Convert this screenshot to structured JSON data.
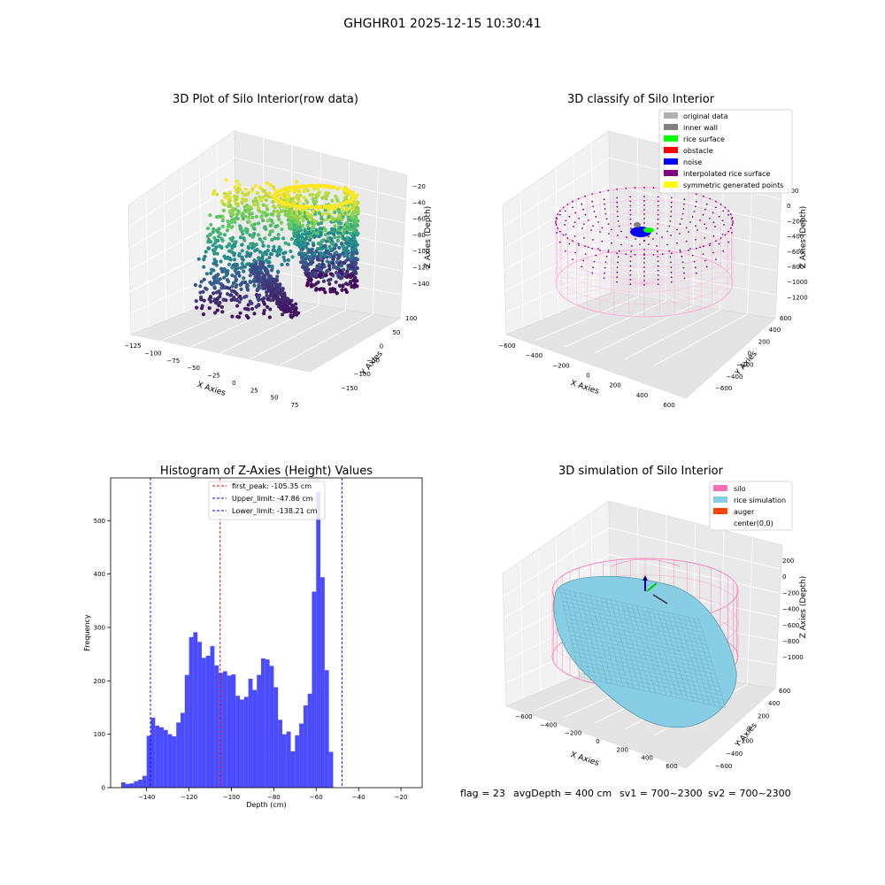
{
  "figure": {
    "suptitle": "GHGHR01 2025-12-15 10:30:41",
    "footer": {
      "flag": "flag = 23",
      "avg_depth": "avgDepth = 400 cm",
      "sv1": "sv1 = 700~2300",
      "sv2": "sv2 = 700~2300"
    }
  },
  "chart_data": [
    {
      "type": "scatter",
      "projection": "3d",
      "title": "3D Plot of Silo Interior(row data)",
      "xlabel": "X Axies",
      "ylabel": "Y Axies",
      "zlabel": "Z Axies (Depth)",
      "x_ticks": [
        "−125",
        "−100",
        "−75",
        "−50",
        "−25",
        "0",
        "25",
        "50",
        "75"
      ],
      "y_ticks": [
        "−150",
        "−100",
        "−50",
        "0",
        "50",
        "100"
      ],
      "z_ticks": [
        "−20",
        "−40",
        "−60",
        "−80",
        "−100",
        "−120",
        "−140"
      ],
      "xlim": [
        -135,
        80
      ],
      "ylim": [
        -170,
        120
      ],
      "zlim": [
        -150,
        -15
      ],
      "colormap": "viridis",
      "colors": {
        "low": "#440154",
        "mid": "#21918c",
        "high": "#fde725"
      }
    },
    {
      "type": "scatter",
      "projection": "3d",
      "title": "3D classify of Silo Interior",
      "xlabel": "X Axies",
      "ylabel": "Y Axies",
      "zlabel": "Z Axies (Depth)",
      "x_ticks": [
        "−600",
        "−400",
        "−200",
        "0",
        "200",
        "400",
        "600"
      ],
      "y_ticks": [
        "−600",
        "−400",
        "−200",
        "0",
        "200",
        "400",
        "600"
      ],
      "z_ticks": [
        "200",
        "0",
        "−200",
        "−400",
        "−600",
        "−800",
        "−1000",
        "−1200"
      ],
      "legend": {
        "placement": "top-right",
        "entries": [
          {
            "label": "original data",
            "color": "#b0b0b0"
          },
          {
            "label": "inner wall",
            "color": "#808080"
          },
          {
            "label": "rice surface",
            "color": "#00ff00"
          },
          {
            "label": "obstacle",
            "color": "#ff0000"
          },
          {
            "label": "noise",
            "color": "#0000ff"
          },
          {
            "label": "interpolated rice surface",
            "color": "#800080"
          },
          {
            "label": "symmetric generated points",
            "color": "#ffff00"
          }
        ]
      },
      "wall_color": "#ff9ecf"
    },
    {
      "type": "bar",
      "title": "Histogram of Z-Axies (Height) Values",
      "xlabel": "Depth (cm)",
      "ylabel": "Frequency",
      "xlim": [
        -157,
        -10
      ],
      "ylim": [
        0,
        580
      ],
      "x_ticks": [
        -140,
        -120,
        -100,
        -80,
        -60,
        -40,
        -20
      ],
      "y_ticks": [
        0,
        100,
        200,
        300,
        400,
        500
      ],
      "bin_start": -152,
      "bin_width": 2,
      "values": [
        10,
        7,
        8,
        12,
        15,
        22,
        97,
        131,
        116,
        113,
        108,
        100,
        96,
        122,
        140,
        211,
        282,
        291,
        273,
        243,
        247,
        265,
        229,
        215,
        218,
        210,
        212,
        172,
        165,
        170,
        204,
        183,
        211,
        242,
        240,
        228,
        188,
        127,
        100,
        105,
        68,
        98,
        120,
        154,
        176,
        367,
        554,
        394,
        220,
        67
      ],
      "bar_color": "#4b4bff",
      "lines": [
        {
          "label": "first_peak: -105.35 cm",
          "x": -105.35,
          "color": "#ff0000"
        },
        {
          "label": "Upper_limit: -47.86 cm",
          "x": -47.86,
          "color": "#0000ff"
        },
        {
          "label": "Lower_limit: -138.21 cm",
          "x": -138.21,
          "color": "#0000ff"
        }
      ],
      "legend": {
        "placement": "top-center"
      }
    },
    {
      "type": "area",
      "projection": "3d",
      "title": "3D simulation of Silo Interior",
      "xlabel": "X Axies",
      "ylabel": "Y Axies",
      "zlabel": "Z Axies (Depth)",
      "x_ticks": [
        "−600",
        "−400",
        "−200",
        "0",
        "200",
        "400",
        "600"
      ],
      "y_ticks": [
        "−600",
        "−400",
        "−200",
        "0",
        "200",
        "400",
        "600"
      ],
      "z_ticks": [
        "200",
        "0",
        "−200",
        "−400",
        "−600",
        "−800",
        "−1000"
      ],
      "legend": {
        "placement": "top-right",
        "entries": [
          {
            "label": "silo",
            "color": "#ff6eb4"
          },
          {
            "label": "rice simulation",
            "color": "#87cde4"
          },
          {
            "label": "auger",
            "color": "#ff4500"
          },
          {
            "label": "center(0,0)",
            "color": "#ffffff"
          }
        ]
      }
    }
  ]
}
